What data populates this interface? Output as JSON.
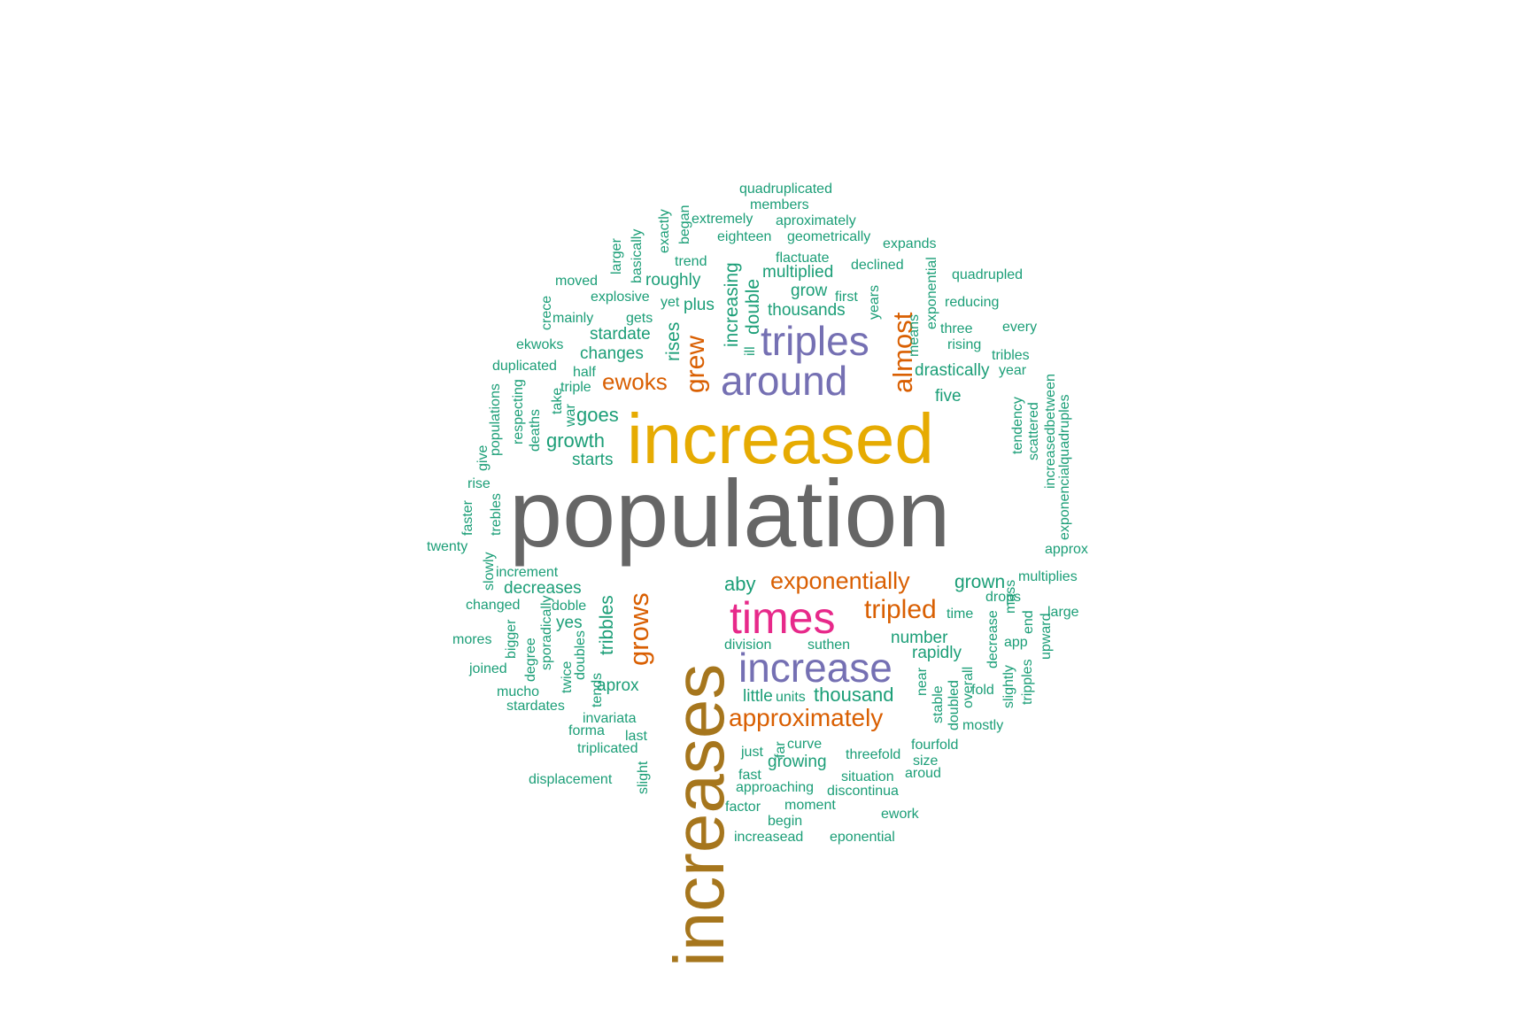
{
  "colors": {
    "gray": "#666666",
    "gold": "#E6AB02",
    "brown": "#A6761D",
    "purple": "#7570B3",
    "orange": "#D95F02",
    "magenta": "#E7298A",
    "teal": "#1B9E77"
  },
  "words": [
    {
      "text": "population",
      "size": "xl",
      "color": "gray"
    },
    {
      "text": "increased",
      "size": "l",
      "color": "gold"
    },
    {
      "text": "increases",
      "size": "xl",
      "color": "brown"
    },
    {
      "text": "triples",
      "size": "m",
      "color": "purple"
    },
    {
      "text": "around",
      "size": "m",
      "color": "purple"
    },
    {
      "text": "increase",
      "size": "m",
      "color": "purple"
    },
    {
      "text": "times",
      "size": "m",
      "color": "magenta"
    },
    {
      "text": "almost",
      "size": "s",
      "color": "orange"
    },
    {
      "text": "grew",
      "size": "s",
      "color": "orange"
    },
    {
      "text": "ewoks",
      "size": "s",
      "color": "orange"
    },
    {
      "text": "exponentially",
      "size": "s",
      "color": "orange"
    },
    {
      "text": "tripled",
      "size": "s",
      "color": "orange"
    },
    {
      "text": "approximately",
      "size": "s",
      "color": "orange"
    },
    {
      "text": "grows",
      "size": "s",
      "color": "orange"
    },
    {
      "text": "increasing",
      "size": "xs",
      "color": "teal"
    },
    {
      "text": "double",
      "size": "xs",
      "color": "teal"
    },
    {
      "text": "rises",
      "size": "xs",
      "color": "teal"
    },
    {
      "text": "tribbles",
      "size": "xs",
      "color": "teal"
    },
    {
      "text": "quadruplicated",
      "size": "xxs",
      "color": "teal"
    },
    {
      "text": "members",
      "size": "xxs",
      "color": "teal"
    },
    {
      "text": "extremely",
      "size": "xxs",
      "color": "teal"
    },
    {
      "text": "aproximately",
      "size": "xxs",
      "color": "teal"
    },
    {
      "text": "eighteen",
      "size": "xxs",
      "color": "teal"
    },
    {
      "text": "geometrically",
      "size": "xxs",
      "color": "teal"
    },
    {
      "text": "expands",
      "size": "xxs",
      "color": "teal"
    },
    {
      "text": "exactly",
      "size": "xxs",
      "color": "teal"
    },
    {
      "text": "began",
      "size": "xxs",
      "color": "teal"
    },
    {
      "text": "basically",
      "size": "xxs",
      "color": "teal"
    },
    {
      "text": "larger",
      "size": "xxs",
      "color": "teal"
    },
    {
      "text": "trend",
      "size": "xxs",
      "color": "teal"
    },
    {
      "text": "flactuate",
      "size": "xxs",
      "color": "teal"
    },
    {
      "text": "declined",
      "size": "xxs",
      "color": "teal"
    },
    {
      "text": "quadrupled",
      "size": "xxs",
      "color": "teal"
    },
    {
      "text": "moved",
      "size": "xxs",
      "color": "teal"
    },
    {
      "text": "roughly",
      "size": "xs",
      "color": "teal"
    },
    {
      "text": "multiplied",
      "size": "xs",
      "color": "teal"
    },
    {
      "text": "explosive",
      "size": "xxs",
      "color": "teal"
    },
    {
      "text": "grow",
      "size": "xs",
      "color": "teal"
    },
    {
      "text": "first",
      "size": "xxs",
      "color": "teal"
    },
    {
      "text": "years",
      "size": "xxs",
      "color": "teal"
    },
    {
      "text": "exponential",
      "size": "xxs",
      "color": "teal"
    },
    {
      "text": "reducing",
      "size": "xxs",
      "color": "teal"
    },
    {
      "text": "crece",
      "size": "xxs",
      "color": "teal"
    },
    {
      "text": "mainly",
      "size": "xxs",
      "color": "teal"
    },
    {
      "text": "gets",
      "size": "xxs",
      "color": "teal"
    },
    {
      "text": "yet",
      "size": "xxs",
      "color": "teal"
    },
    {
      "text": "plus",
      "size": "xs",
      "color": "teal"
    },
    {
      "text": "thousands",
      "size": "xs",
      "color": "teal"
    },
    {
      "text": "means",
      "size": "xxs",
      "color": "teal"
    },
    {
      "text": "three",
      "size": "xxs",
      "color": "teal"
    },
    {
      "text": "every",
      "size": "xxs",
      "color": "teal"
    },
    {
      "text": "stardate",
      "size": "xs",
      "color": "teal"
    },
    {
      "text": "ekwoks",
      "size": "xxs",
      "color": "teal"
    },
    {
      "text": "changes",
      "size": "xs",
      "color": "teal"
    },
    {
      "text": "ill",
      "size": "xxs",
      "color": "teal"
    },
    {
      "text": "rising",
      "size": "xxs",
      "color": "teal"
    },
    {
      "text": "tribles",
      "size": "xxs",
      "color": "teal"
    },
    {
      "text": "duplicated",
      "size": "xxs",
      "color": "teal"
    },
    {
      "text": "half",
      "size": "xxs",
      "color": "teal"
    },
    {
      "text": "drastically",
      "size": "xs",
      "color": "teal"
    },
    {
      "text": "year",
      "size": "xxs",
      "color": "teal"
    },
    {
      "text": "triple",
      "size": "xxs",
      "color": "teal"
    },
    {
      "text": "take",
      "size": "xxs",
      "color": "teal"
    },
    {
      "text": "populations",
      "size": "xxs",
      "color": "teal"
    },
    {
      "text": "respecting",
      "size": "xxs",
      "color": "teal"
    },
    {
      "text": "war",
      "size": "xxs",
      "color": "teal"
    },
    {
      "text": "deaths",
      "size": "xxs",
      "color": "teal"
    },
    {
      "text": "goes",
      "size": "xs",
      "color": "teal"
    },
    {
      "text": "five",
      "size": "xs",
      "color": "teal"
    },
    {
      "text": "tendency",
      "size": "xxs",
      "color": "teal"
    },
    {
      "text": "scattered",
      "size": "xxs",
      "color": "teal"
    },
    {
      "text": "increasedbetween",
      "size": "xxs",
      "color": "teal"
    },
    {
      "text": "exponencialquadruples",
      "size": "xxs",
      "color": "teal"
    },
    {
      "text": "growth",
      "size": "xs",
      "color": "teal"
    },
    {
      "text": "give",
      "size": "xxs",
      "color": "teal"
    },
    {
      "text": "starts",
      "size": "xs",
      "color": "teal"
    },
    {
      "text": "rise",
      "size": "xxs",
      "color": "teal"
    },
    {
      "text": "faster",
      "size": "xxs",
      "color": "teal"
    },
    {
      "text": "trebles",
      "size": "xxs",
      "color": "teal"
    },
    {
      "text": "twenty",
      "size": "xxs",
      "color": "teal"
    },
    {
      "text": "approx",
      "size": "xxs",
      "color": "teal"
    },
    {
      "text": "slowly",
      "size": "xxs",
      "color": "teal"
    },
    {
      "text": "increment",
      "size": "xxs",
      "color": "teal"
    },
    {
      "text": "aby",
      "size": "xs",
      "color": "teal"
    },
    {
      "text": "grown",
      "size": "xs",
      "color": "teal"
    },
    {
      "text": "multiplies",
      "size": "xxs",
      "color": "teal"
    },
    {
      "text": "decreases",
      "size": "xs",
      "color": "teal"
    },
    {
      "text": "changed",
      "size": "xxs",
      "color": "teal"
    },
    {
      "text": "doble",
      "size": "xxs",
      "color": "teal"
    },
    {
      "text": "drops",
      "size": "xxs",
      "color": "teal"
    },
    {
      "text": "large",
      "size": "xxs",
      "color": "teal"
    },
    {
      "text": "time",
      "size": "xxs",
      "color": "teal"
    },
    {
      "text": "decrease",
      "size": "xxs",
      "color": "teal"
    },
    {
      "text": "mass",
      "size": "xxs",
      "color": "teal"
    },
    {
      "text": "end",
      "size": "xxs",
      "color": "teal"
    },
    {
      "text": "upward",
      "size": "xxs",
      "color": "teal"
    },
    {
      "text": "yes",
      "size": "xs",
      "color": "teal"
    },
    {
      "text": "sporadically",
      "size": "xxs",
      "color": "teal"
    },
    {
      "text": "bigger",
      "size": "xxs",
      "color": "teal"
    },
    {
      "text": "mores",
      "size": "xxs",
      "color": "teal"
    },
    {
      "text": "number",
      "size": "xs",
      "color": "teal"
    },
    {
      "text": "app",
      "size": "xxs",
      "color": "teal"
    },
    {
      "text": "division",
      "size": "xxs",
      "color": "teal"
    },
    {
      "text": "suthen",
      "size": "xxs",
      "color": "teal"
    },
    {
      "text": "rapidly",
      "size": "xs",
      "color": "teal"
    },
    {
      "text": "degree",
      "size": "xxs",
      "color": "teal"
    },
    {
      "text": "joined",
      "size": "xxs",
      "color": "teal"
    },
    {
      "text": "twice",
      "size": "xxs",
      "color": "teal"
    },
    {
      "text": "doubles",
      "size": "xxs",
      "color": "teal"
    },
    {
      "text": "tends",
      "size": "xxs",
      "color": "teal"
    },
    {
      "text": "aprox",
      "size": "xs",
      "color": "teal"
    },
    {
      "text": "near",
      "size": "xxs",
      "color": "teal"
    },
    {
      "text": "overall",
      "size": "xxs",
      "color": "teal"
    },
    {
      "text": "fold",
      "size": "xxs",
      "color": "teal"
    },
    {
      "text": "slightly",
      "size": "xxs",
      "color": "teal"
    },
    {
      "text": "tripples",
      "size": "xxs",
      "color": "teal"
    },
    {
      "text": "mucho",
      "size": "xxs",
      "color": "teal"
    },
    {
      "text": "stardates",
      "size": "xxs",
      "color": "teal"
    },
    {
      "text": "little",
      "size": "xs",
      "color": "teal"
    },
    {
      "text": "units",
      "size": "xxs",
      "color": "teal"
    },
    {
      "text": "thousand",
      "size": "xs",
      "color": "teal"
    },
    {
      "text": "stable",
      "size": "xxs",
      "color": "teal"
    },
    {
      "text": "doubled",
      "size": "xxs",
      "color": "teal"
    },
    {
      "text": "invariata",
      "size": "xxs",
      "color": "teal"
    },
    {
      "text": "forma",
      "size": "xxs",
      "color": "teal"
    },
    {
      "text": "mostly",
      "size": "xxs",
      "color": "teal"
    },
    {
      "text": "last",
      "size": "xxs",
      "color": "teal"
    },
    {
      "text": "triplicated",
      "size": "xxs",
      "color": "teal"
    },
    {
      "text": "far",
      "size": "xxs",
      "color": "teal"
    },
    {
      "text": "curve",
      "size": "xxs",
      "color": "teal"
    },
    {
      "text": "fourfold",
      "size": "xxs",
      "color": "teal"
    },
    {
      "text": "just",
      "size": "xxs",
      "color": "teal"
    },
    {
      "text": "threefold",
      "size": "xxs",
      "color": "teal"
    },
    {
      "text": "size",
      "size": "xxs",
      "color": "teal"
    },
    {
      "text": "growing",
      "size": "xs",
      "color": "teal"
    },
    {
      "text": "slight",
      "size": "xxs",
      "color": "teal"
    },
    {
      "text": "fast",
      "size": "xxs",
      "color": "teal"
    },
    {
      "text": "situation",
      "size": "xxs",
      "color": "teal"
    },
    {
      "text": "aroud",
      "size": "xxs",
      "color": "teal"
    },
    {
      "text": "displacement",
      "size": "xxs",
      "color": "teal"
    },
    {
      "text": "approaching",
      "size": "xxs",
      "color": "teal"
    },
    {
      "text": "discontinua",
      "size": "xxs",
      "color": "teal"
    },
    {
      "text": "factor",
      "size": "xxs",
      "color": "teal"
    },
    {
      "text": "moment",
      "size": "xxs",
      "color": "teal"
    },
    {
      "text": "ework",
      "size": "xxs",
      "color": "teal"
    },
    {
      "text": "begin",
      "size": "xxs",
      "color": "teal"
    },
    {
      "text": "increasead",
      "size": "xxs",
      "color": "teal"
    },
    {
      "text": "eponential",
      "size": "xxs",
      "color": "teal"
    }
  ]
}
